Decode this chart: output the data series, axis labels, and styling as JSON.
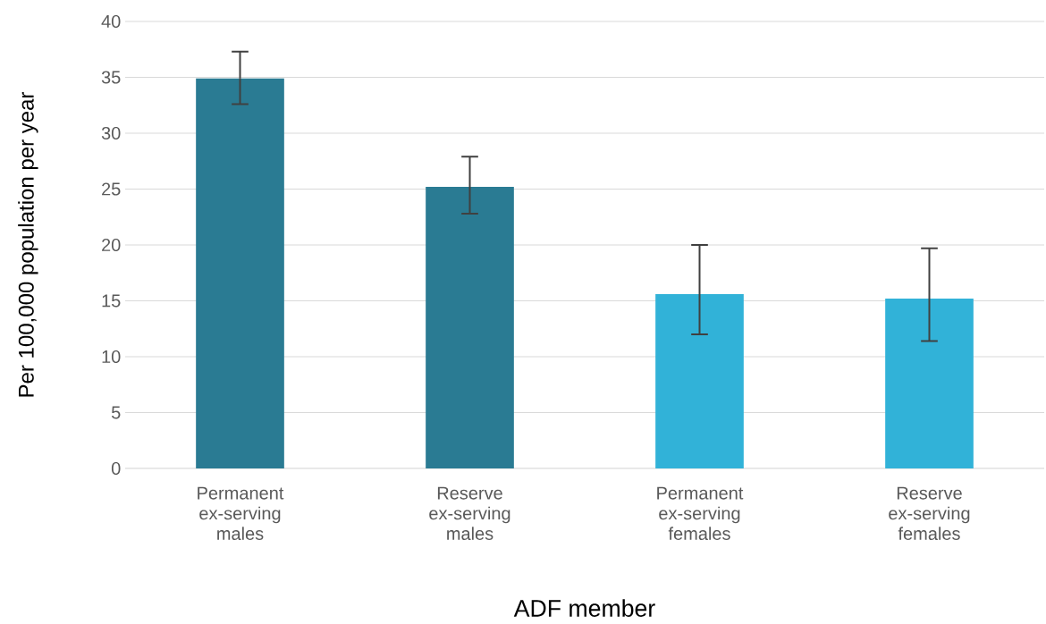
{
  "chart_data": {
    "type": "bar",
    "xlabel": "ADF member",
    "ylabel": "Per 100,000 population per year",
    "categories": [
      "Permanent ex-serving males",
      "Reserve ex-serving males",
      "Permanent ex-serving females",
      "Reserve ex-serving females"
    ],
    "values": [
      34.9,
      25.2,
      15.6,
      15.2
    ],
    "errors": [
      [
        32.6,
        37.3
      ],
      [
        22.8,
        27.9
      ],
      [
        12.0,
        20.0
      ],
      [
        11.4,
        19.7
      ]
    ],
    "colors": [
      "#2a7b93",
      "#2a7b93",
      "#31b2d8",
      "#31b2d8"
    ],
    "ylim": [
      0,
      40
    ],
    "yticks": [
      0,
      5,
      10,
      15,
      20,
      25,
      30,
      35,
      40
    ],
    "grid": "y"
  }
}
